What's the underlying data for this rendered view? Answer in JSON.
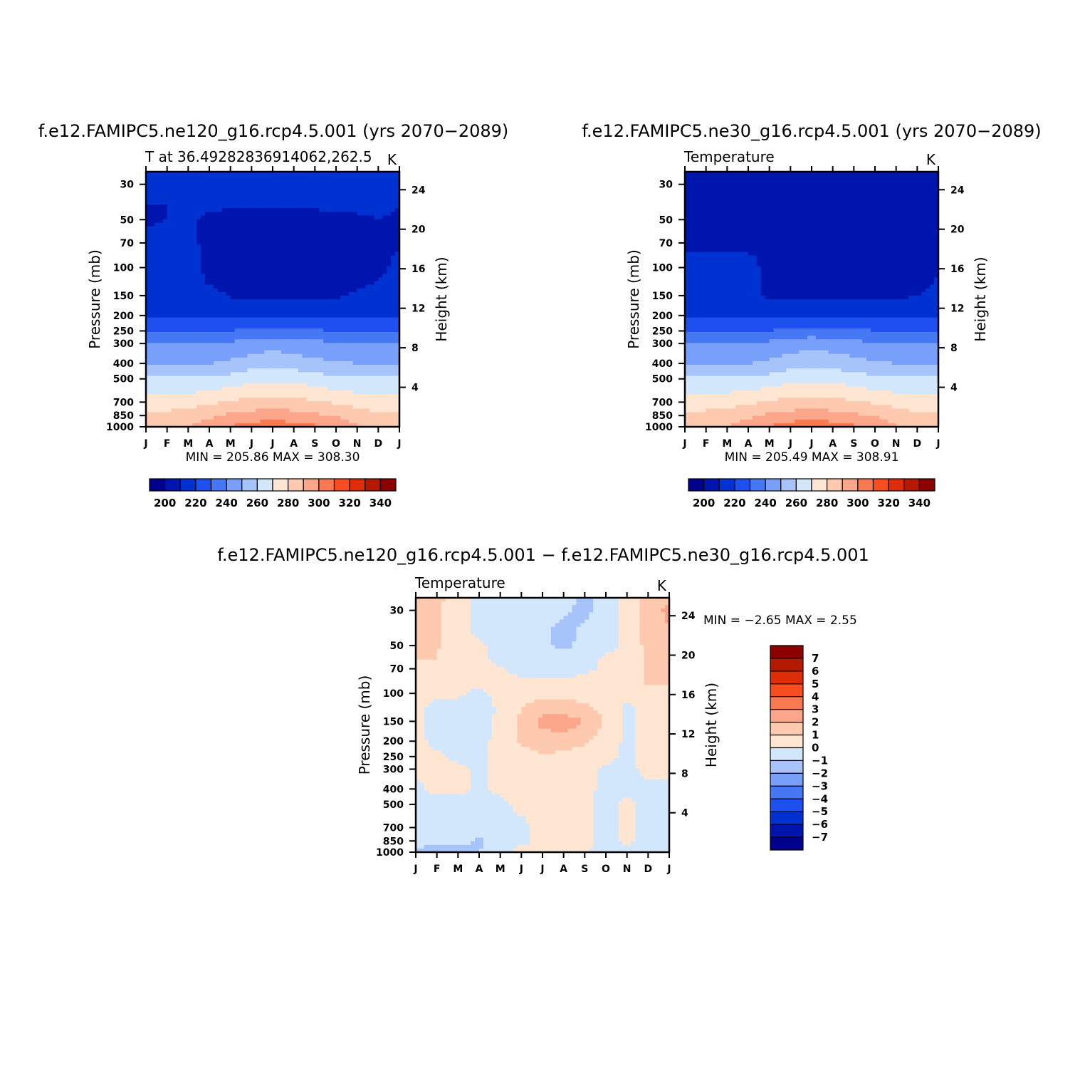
{
  "figure": {
    "panel_a_title": "f.e12.FAMIPC5.ne120_g16.rcp4.5.001 (yrs 2070−2089)",
    "panel_b_title": "f.e12.FAMIPC5.ne30_g16.rcp4.5.001 (yrs 2070−2089)",
    "panel_c_title": "f.e12.FAMIPC5.ne120_g16.rcp4.5.001 − f.e12.FAMIPC5.ne30_g16.rcp4.5.001"
  },
  "colors": {
    "abs": [
      "#00008c",
      "#0014ae",
      "#0032d2",
      "#1e50f0",
      "#4678f5",
      "#78a0fa",
      "#a6c3fa",
      "#d2e6fc",
      "#fee6d2",
      "#fdc9af",
      "#fba68b",
      "#f97a50",
      "#f64e20",
      "#dc2d08",
      "#b41a00",
      "#8c0000"
    ],
    "diff": [
      "#00008c",
      "#0014ae",
      "#0032d2",
      "#1e50f0",
      "#4678f5",
      "#78a0fa",
      "#a6c3fa",
      "#d2e6fc",
      "#fee6d2",
      "#fdc9af",
      "#fba68b",
      "#f97a50",
      "#f64e20",
      "#dc2d08",
      "#b41a00",
      "#8c0000"
    ]
  },
  "chart_data": [
    {
      "type": "heatmap",
      "title": "f.e12.FAMIPC5.ne120_g16.rcp4.5.001 (yrs 2070−2089)",
      "left_string": "T at 36.49282836914062,262.5",
      "right_string": "K",
      "ylabel": "Pressure (mb)",
      "y2label": "Height (km)",
      "x_ticks": [
        "J",
        "F",
        "M",
        "A",
        "M",
        "J",
        "J",
        "A",
        "S",
        "O",
        "N",
        "D",
        "J"
      ],
      "y_ticks": [
        30,
        50,
        70,
        100,
        150,
        200,
        250,
        300,
        400,
        500,
        700,
        850,
        1000
      ],
      "y2_ticks": [
        24,
        20,
        16,
        12,
        8,
        4
      ],
      "ylim": [
        1000,
        25
      ],
      "y_scale": "log",
      "min_max_text": "MIN = 205.86 MAX = 308.30",
      "colorbar_labels": [
        "200",
        "220",
        "240",
        "260",
        "280",
        "300",
        "320",
        "340"
      ],
      "levels": [
        200,
        210,
        220,
        230,
        240,
        250,
        260,
        270,
        280,
        290,
        300,
        310,
        320,
        330,
        340
      ],
      "data_estimate": {
        "months": [
          "J",
          "F",
          "M",
          "A",
          "M",
          "J",
          "J",
          "A",
          "S",
          "O",
          "N",
          "D",
          "J"
        ],
        "pressure": [
          25,
          30,
          40,
          50,
          60,
          70,
          85,
          100,
          125,
          150,
          200,
          250,
          300,
          400,
          500,
          700,
          850,
          1000
        ],
        "T": [
          [
            211,
            211,
            211,
            211,
            211,
            211,
            211,
            212,
            213,
            215,
            219,
            214,
            211
          ],
          [
            210,
            211,
            211,
            211,
            211,
            211,
            211,
            211,
            212,
            214,
            217,
            213,
            210
          ],
          [
            210,
            210,
            211,
            211,
            211,
            211,
            211,
            211,
            211,
            212,
            213,
            212,
            210
          ],
          [
            208,
            210,
            211,
            209,
            208,
            208,
            208,
            208,
            208,
            208,
            208,
            210,
            209
          ],
          [
            212,
            212,
            211,
            208,
            207,
            207,
            207,
            207,
            207,
            207,
            208,
            209,
            210
          ],
          [
            213,
            213,
            212,
            208,
            207,
            207,
            207,
            207,
            207,
            207,
            207,
            209,
            209
          ],
          [
            213,
            213,
            212,
            208,
            207,
            207,
            207,
            207,
            207,
            207,
            207,
            208,
            211
          ],
          [
            214,
            214,
            213,
            208,
            207,
            207,
            207,
            207,
            207,
            207,
            207,
            208,
            212
          ],
          [
            215,
            215,
            214,
            209,
            207,
            207,
            207,
            207,
            207,
            207,
            207,
            211,
            214
          ],
          [
            216,
            216,
            215,
            214,
            209,
            209,
            208,
            208,
            208,
            208,
            212,
            216,
            216
          ],
          [
            219,
            219,
            219,
            219,
            219,
            219,
            219,
            219,
            219,
            219,
            219,
            219,
            219
          ],
          [
            230,
            230,
            229,
            228,
            230,
            232,
            233,
            232,
            231,
            230,
            229,
            230,
            230
          ],
          [
            241,
            241,
            241,
            240,
            242,
            244,
            246,
            244,
            243,
            241,
            240,
            241,
            241
          ],
          [
            250,
            250,
            250,
            250,
            252,
            255,
            257,
            255,
            253,
            251,
            250,
            250,
            250
          ],
          [
            261,
            261,
            261,
            261,
            264,
            267,
            268,
            267,
            265,
            262,
            261,
            261,
            261
          ],
          [
            274,
            274,
            276,
            278,
            281,
            283,
            284,
            283,
            281,
            279,
            276,
            274,
            274
          ],
          [
            281,
            283,
            285,
            288,
            292,
            294,
            295,
            294,
            292,
            289,
            285,
            282,
            281
          ],
          [
            285,
            287,
            290,
            295,
            300,
            305,
            306,
            305,
            302,
            297,
            291,
            287,
            285
          ]
        ]
      }
    },
    {
      "type": "heatmap",
      "title": "f.e12.FAMIPC5.ne30_g16.rcp4.5.001 (yrs 2070−2089)",
      "left_string": "Temperature",
      "right_string": "K",
      "ylabel": "Pressure (mb)",
      "y2label": "Height (km)",
      "x_ticks": [
        "J",
        "F",
        "M",
        "A",
        "M",
        "J",
        "J",
        "A",
        "S",
        "O",
        "N",
        "D",
        "J"
      ],
      "y_ticks": [
        30,
        50,
        70,
        100,
        150,
        200,
        250,
        300,
        400,
        500,
        700,
        850,
        1000
      ],
      "y2_ticks": [
        24,
        20,
        16,
        12,
        8,
        4
      ],
      "ylim": [
        1000,
        25
      ],
      "y_scale": "log",
      "min_max_text": "MIN = 205.49 MAX = 308.91",
      "colorbar_labels": [
        "200",
        "220",
        "240",
        "260",
        "280",
        "300",
        "320",
        "340"
      ],
      "levels": [
        200,
        210,
        220,
        230,
        240,
        250,
        260,
        270,
        280,
        290,
        300,
        310,
        320,
        330,
        340
      ],
      "data_estimate": {
        "months": [
          "J",
          "F",
          "M",
          "A",
          "M",
          "J",
          "J",
          "A",
          "S",
          "O",
          "N",
          "D",
          "J"
        ],
        "pressure": [
          25,
          30,
          40,
          50,
          60,
          70,
          85,
          100,
          125,
          150,
          200,
          250,
          300,
          400,
          500,
          700,
          850,
          1000
        ],
        "T": [
          [
            210,
            208,
            208,
            208,
            208,
            208,
            208,
            208,
            208,
            208,
            209,
            208,
            208
          ],
          [
            208,
            207,
            207,
            207,
            207,
            207,
            207,
            207,
            207,
            208,
            209,
            208,
            207
          ],
          [
            208,
            207,
            207,
            207,
            207,
            207,
            207,
            207,
            207,
            207,
            208,
            207,
            207
          ],
          [
            207,
            207,
            207,
            207,
            207,
            207,
            207,
            207,
            207,
            207,
            207,
            207,
            207
          ],
          [
            207,
            207,
            207,
            207,
            207,
            207,
            207,
            207,
            207,
            207,
            207,
            207,
            207
          ],
          [
            207,
            207,
            207,
            207,
            207,
            207,
            207,
            207,
            207,
            207,
            207,
            207,
            207
          ],
          [
            211,
            212,
            212,
            211,
            208,
            207,
            207,
            207,
            207,
            207,
            207,
            207,
            207
          ],
          [
            212,
            212,
            212,
            212,
            208,
            207,
            207,
            207,
            207,
            207,
            207,
            207,
            209
          ],
          [
            212,
            212,
            212,
            212,
            208,
            207,
            207,
            207,
            207,
            207,
            207,
            207,
            211
          ],
          [
            213,
            213,
            213,
            213,
            208,
            207,
            207,
            207,
            207,
            207,
            208,
            210,
            213
          ],
          [
            219,
            219,
            219,
            219,
            219,
            219,
            218,
            218,
            218,
            219,
            219,
            219,
            219
          ],
          [
            229,
            229,
            229,
            228,
            230,
            232,
            234,
            233,
            232,
            230,
            229,
            229,
            229
          ],
          [
            240,
            240,
            240,
            240,
            242,
            245,
            246,
            245,
            243,
            241,
            240,
            240,
            240
          ],
          [
            250,
            250,
            250,
            250,
            252,
            255,
            257,
            256,
            254,
            251,
            250,
            250,
            250
          ],
          [
            261,
            261,
            261,
            262,
            264,
            267,
            268,
            267,
            265,
            262,
            261,
            261,
            261
          ],
          [
            274,
            275,
            276,
            278,
            281,
            283,
            284,
            283,
            281,
            279,
            276,
            274,
            274
          ],
          [
            281,
            283,
            285,
            288,
            292,
            294,
            295,
            294,
            292,
            289,
            285,
            282,
            281
          ],
          [
            285,
            287,
            290,
            295,
            301,
            305,
            307,
            305,
            302,
            297,
            291,
            287,
            285
          ]
        ]
      }
    },
    {
      "type": "heatmap",
      "title": "f.e12.FAMIPC5.ne120_g16.rcp4.5.001 − f.e12.FAMIPC5.ne30_g16.rcp4.5.001",
      "left_string": "Temperature",
      "right_string": "K",
      "ylabel": "Pressure (mb)",
      "y2label": "Height (km)",
      "x_ticks": [
        "J",
        "F",
        "M",
        "A",
        "M",
        "J",
        "J",
        "A",
        "S",
        "O",
        "N",
        "D",
        "J"
      ],
      "y_ticks": [
        30,
        50,
        70,
        100,
        150,
        200,
        250,
        300,
        400,
        500,
        700,
        850,
        1000
      ],
      "y2_ticks": [
        24,
        20,
        16,
        12,
        8,
        4
      ],
      "ylim": [
        1000,
        25
      ],
      "y_scale": "log",
      "min_max_text": "MIN =   −2.65 MAX =     2.55",
      "colorbar_labels": [
        "7",
        "6",
        "5",
        "4",
        "3",
        "2",
        "1",
        "0",
        "−1",
        "−2",
        "−3",
        "−4",
        "−5",
        "−6",
        "−7"
      ],
      "levels": [
        -7,
        -6,
        -5,
        -4,
        -3,
        -2,
        -1,
        0,
        1,
        2,
        3,
        4,
        5,
        6,
        7
      ],
      "data_estimate": {
        "months": [
          "J",
          "F",
          "M",
          "A",
          "M",
          "J",
          "J",
          "A",
          "S",
          "O",
          "N",
          "D",
          "J"
        ],
        "pressure": [
          25,
          30,
          40,
          50,
          60,
          70,
          85,
          100,
          125,
          150,
          200,
          250,
          300,
          400,
          500,
          700,
          850,
          1000
        ],
        "T": [
          [
            1.2,
            1.3,
            0.4,
            -0.3,
            -0.4,
            -0.4,
            -0.5,
            -0.6,
            -1.2,
            -0.5,
            0.3,
            1.6,
            1.8
          ],
          [
            1.2,
            1.2,
            0.4,
            -0.3,
            -0.5,
            -0.5,
            -0.6,
            -0.8,
            -1.3,
            -0.5,
            0.3,
            1.6,
            2.2
          ],
          [
            1.1,
            1.1,
            0.3,
            -0.2,
            -0.5,
            -0.6,
            -0.7,
            -1.4,
            -0.8,
            -0.5,
            0.3,
            1.3,
            2.0
          ],
          [
            1.1,
            1.1,
            0.3,
            0.2,
            -0.4,
            -0.7,
            -0.7,
            -1.3,
            -0.6,
            -0.4,
            0.3,
            1.3,
            1.8
          ],
          [
            1.0,
            1.0,
            0.3,
            0.3,
            -0.3,
            -0.5,
            -0.6,
            -0.6,
            -0.5,
            0.2,
            0.4,
            1.2,
            1.5
          ],
          [
            0.5,
            0.6,
            0.3,
            0.3,
            0.1,
            -0.3,
            -0.4,
            -0.4,
            -0.2,
            0.2,
            0.4,
            1.2,
            1.3
          ],
          [
            0.3,
            0.4,
            0.2,
            0.3,
            0.2,
            0.2,
            0.2,
            0.3,
            0.2,
            0.3,
            0.4,
            1.1,
            1.2
          ],
          [
            0.2,
            0.2,
            0.2,
            -0.3,
            0.4,
            0.5,
            0.6,
            0.6,
            0.6,
            0.5,
            0.3,
            0.8,
            0.6
          ],
          [
            0.2,
            -0.3,
            -0.4,
            -0.9,
            0.3,
            1.0,
            1.6,
            1.6,
            1.2,
            0.6,
            -0.2,
            0.4,
            0.3
          ],
          [
            0.2,
            -0.4,
            -0.5,
            -0.4,
            0.3,
            1.2,
            2.3,
            2.5,
            2.0,
            0.9,
            -0.2,
            0.3,
            0.3
          ],
          [
            0.3,
            -0.3,
            -0.3,
            -0.3,
            0.3,
            1.2,
            1.6,
            1.5,
            1.2,
            0.5,
            -0.2,
            0.3,
            0.3
          ],
          [
            0.3,
            0.2,
            -0.3,
            -0.3,
            0.3,
            0.5,
            0.9,
            0.7,
            0.4,
            0.3,
            -0.2,
            0.3,
            0.3
          ],
          [
            0.3,
            0.3,
            0.3,
            -0.2,
            0.3,
            0.3,
            0.5,
            0.4,
            0.3,
            -0.2,
            -0.3,
            0.3,
            0.3
          ],
          [
            -0.3,
            0.3,
            0.3,
            -0.3,
            0.3,
            0.4,
            0.4,
            0.4,
            0.3,
            -0.3,
            -0.3,
            -0.3,
            -0.3
          ],
          [
            -0.4,
            -0.4,
            -0.4,
            -0.4,
            -0.3,
            0.3,
            0.4,
            0.4,
            0.3,
            -0.4,
            0.3,
            -0.3,
            -0.4
          ],
          [
            -0.5,
            -0.5,
            -0.5,
            -0.5,
            -0.4,
            -0.3,
            0.3,
            0.3,
            0.2,
            -0.3,
            0.2,
            -0.3,
            -0.4
          ],
          [
            -0.7,
            -0.6,
            -0.7,
            -1.2,
            -0.4,
            -0.3,
            0.3,
            0.4,
            0.3,
            -0.4,
            0.3,
            -0.4,
            -0.7
          ],
          [
            -1.1,
            -1.8,
            -1.4,
            -1.0,
            -0.6,
            0.4,
            0.4,
            0.5,
            0.4,
            -1.2,
            -0.3,
            -0.9,
            -1.0
          ]
        ]
      }
    }
  ]
}
